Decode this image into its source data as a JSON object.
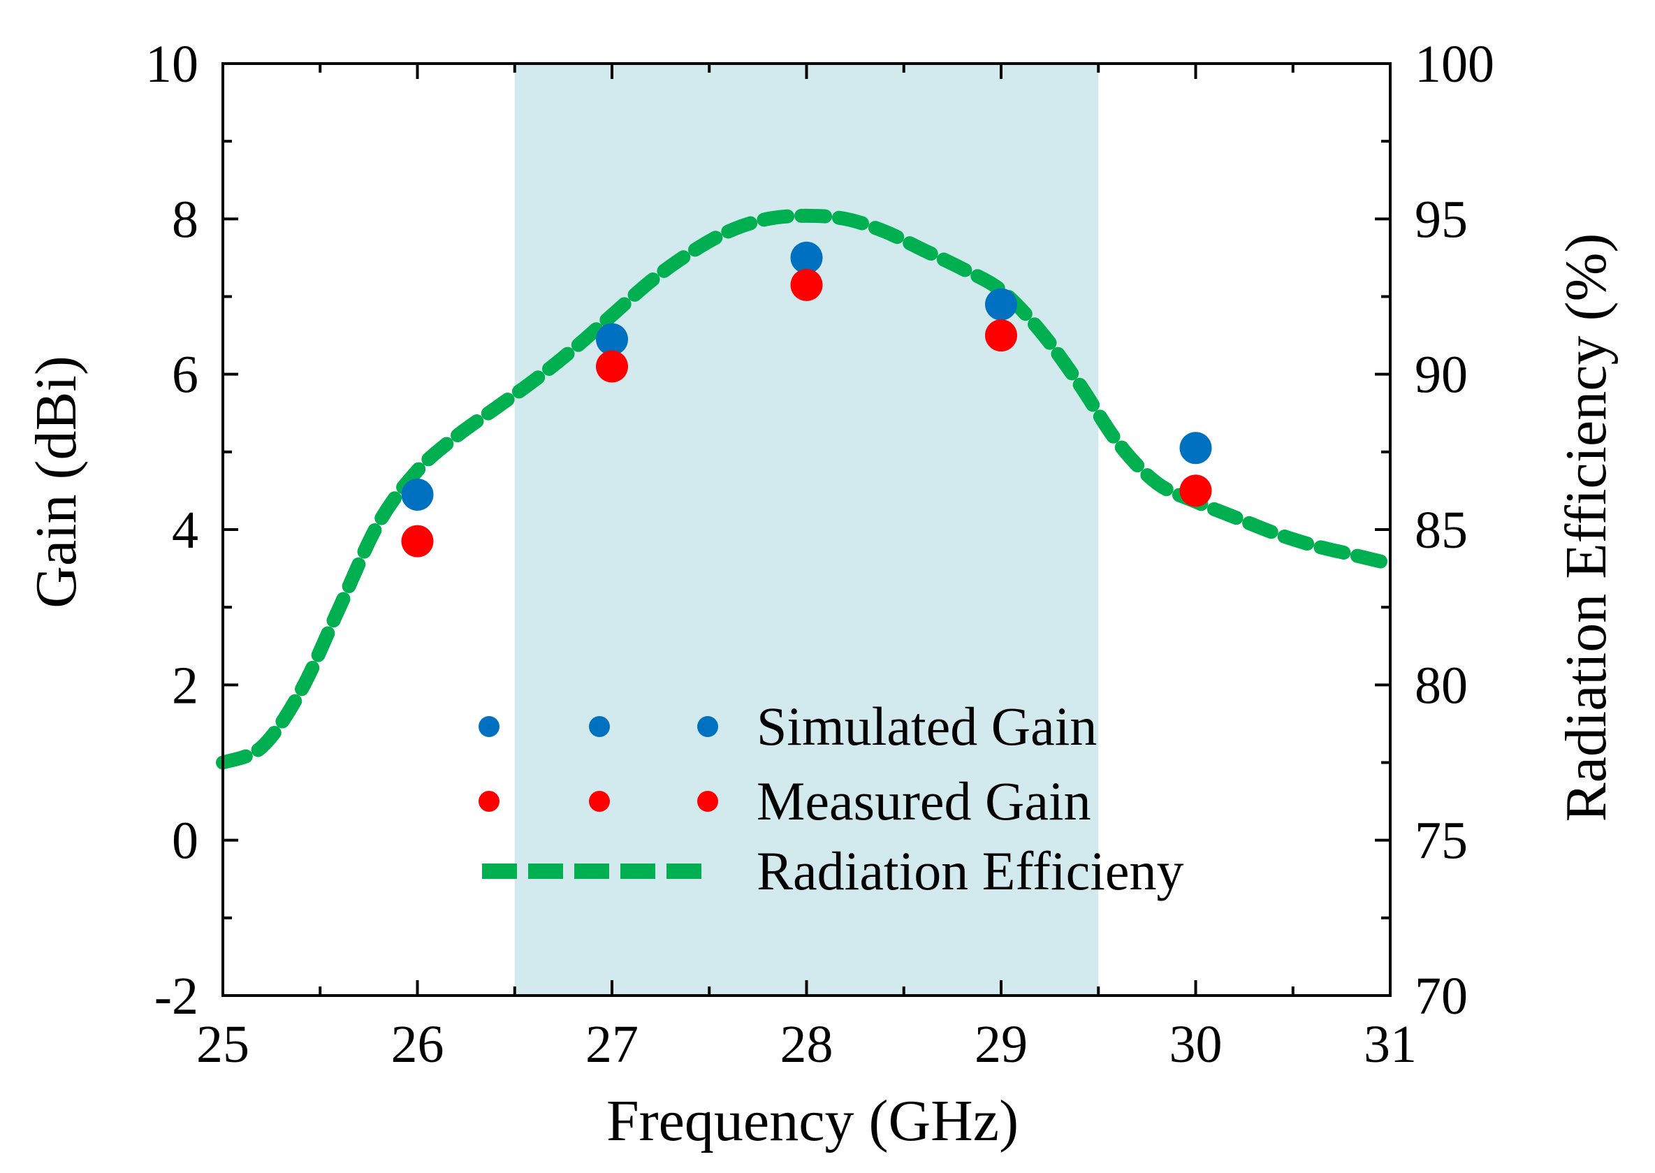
{
  "chart_data": {
    "type": "scatter",
    "xlabel": "Frequency (GHz)",
    "ylabel": "Gain (dBi)",
    "y2label": "Radiation Efficiency (%)",
    "xlim": [
      25,
      31
    ],
    "ylim": [
      -2,
      10
    ],
    "y2lim": [
      70,
      100
    ],
    "xticks": [
      25,
      26,
      27,
      28,
      29,
      30,
      31
    ],
    "yticks": [
      -2,
      0,
      2,
      4,
      6,
      8,
      10
    ],
    "y2ticks": [
      70,
      75,
      80,
      85,
      90,
      95,
      100
    ],
    "highlight_band": {
      "x_range": [
        26.5,
        29.5
      ],
      "color": "#d2e9ee"
    },
    "series": [
      {
        "name": "Simulated Gain",
        "axis": "left",
        "kind": "scatter",
        "color": "#0070c0",
        "x": [
          26,
          27,
          28,
          29,
          30
        ],
        "y": [
          4.45,
          6.45,
          7.5,
          6.9,
          5.05
        ]
      },
      {
        "name": "Measured Gain",
        "axis": "left",
        "kind": "scatter",
        "color": "#ff0000",
        "x": [
          26,
          27,
          28,
          29,
          30
        ],
        "y": [
          3.85,
          6.1,
          7.15,
          6.5,
          4.5
        ]
      },
      {
        "name": "Radiation Efficieny",
        "axis": "right",
        "kind": "line",
        "style": "dashed",
        "color": "#00b050",
        "x": [
          25.0,
          25.2,
          25.4,
          25.6,
          25.8,
          26.0,
          26.2,
          26.4,
          26.6,
          26.8,
          27.0,
          27.2,
          27.4,
          27.6,
          27.8,
          28.0,
          28.2,
          28.4,
          28.6,
          28.8,
          29.0,
          29.2,
          29.4,
          29.6,
          29.8,
          30.0,
          30.2,
          30.4,
          30.6,
          30.8,
          31.0
        ],
        "y": [
          77.5,
          78.0,
          79.8,
          82.5,
          85.2,
          86.9,
          88.0,
          88.9,
          89.8,
          90.8,
          91.9,
          93.0,
          93.9,
          94.6,
          95.0,
          95.1,
          95.0,
          94.6,
          94.0,
          93.4,
          92.7,
          91.4,
          89.7,
          87.8,
          86.5,
          85.9,
          85.4,
          84.9,
          84.5,
          84.2,
          83.9
        ]
      }
    ],
    "legend_position": "bottom-center"
  }
}
